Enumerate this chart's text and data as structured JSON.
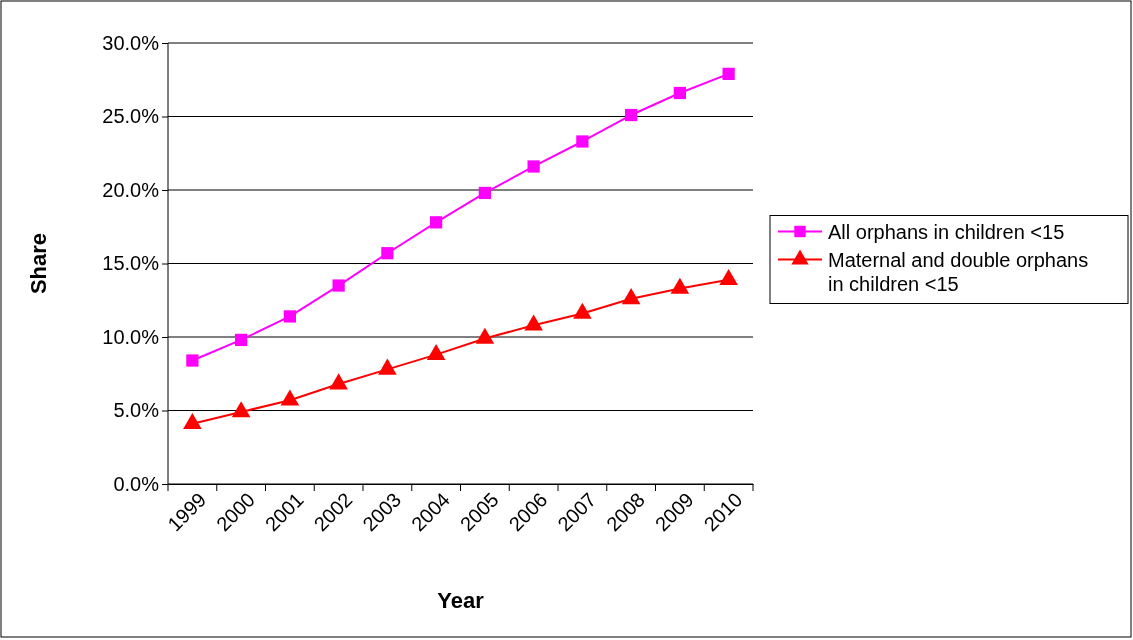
{
  "chart_data": {
    "type": "line",
    "xlabel": "Year",
    "ylabel": "Share",
    "categories": [
      "1999",
      "2000",
      "2001",
      "2002",
      "2003",
      "2004",
      "2005",
      "2006",
      "2007",
      "2008",
      "2009",
      "2010"
    ],
    "series": [
      {
        "name": "All orphans in children <15",
        "color": "#ff00ff",
        "marker": "square",
        "values": [
          8.4,
          9.8,
          11.4,
          13.5,
          15.7,
          17.8,
          19.8,
          21.6,
          23.3,
          25.1,
          26.6,
          27.9
        ]
      },
      {
        "name": "Maternal and double orphans in children <15",
        "color": "#ff0000",
        "marker": "triangle",
        "values": [
          4.1,
          4.9,
          5.7,
          6.8,
          7.8,
          8.8,
          9.9,
          10.8,
          11.6,
          12.6,
          13.3,
          13.9
        ]
      }
    ],
    "ylim": [
      0,
      30
    ],
    "yticks": [
      {
        "value": 0,
        "label": "0.0%"
      },
      {
        "value": 5,
        "label": "5.0%"
      },
      {
        "value": 10,
        "label": "10.0%"
      },
      {
        "value": 15,
        "label": "15.0%"
      },
      {
        "value": 20,
        "label": "20.0%"
      },
      {
        "value": 25,
        "label": "25.0%"
      },
      {
        "value": 30,
        "label": "30.0%"
      }
    ],
    "grid": "y",
    "legend": "right",
    "line_style": "solid"
  }
}
